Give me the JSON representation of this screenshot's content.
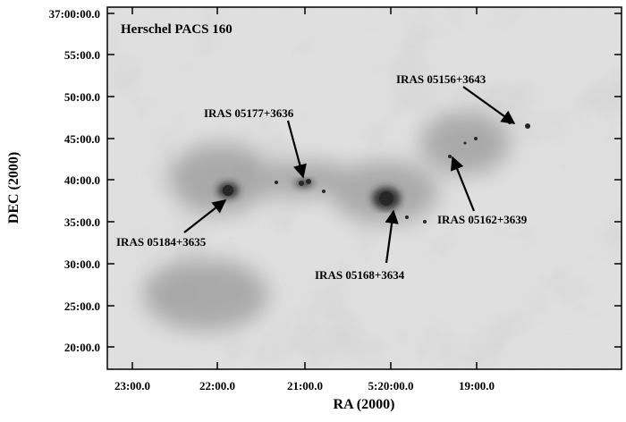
{
  "panel_label": "Herschel PACS 160",
  "x_axis": {
    "label": "RA (2000)",
    "ticks": [
      "23:00.0",
      "22:00.0",
      "21:00.0",
      "5:20:00.0",
      "19:00.0"
    ]
  },
  "y_axis": {
    "label": "DEC (2000)",
    "ticks": [
      "37:00:00.0",
      "55:00.0",
      "50:00.0",
      "45:00.0",
      "40:00.0",
      "35:00.0",
      "30:00.0",
      "25:00.0",
      "20:00.0"
    ]
  },
  "annotations": [
    "IRAS 05156+3643",
    "IRAS 05177+3636",
    "IRAS 05162+3639",
    "IRAS 05184+3635",
    "IRAS 05168+3634"
  ]
}
